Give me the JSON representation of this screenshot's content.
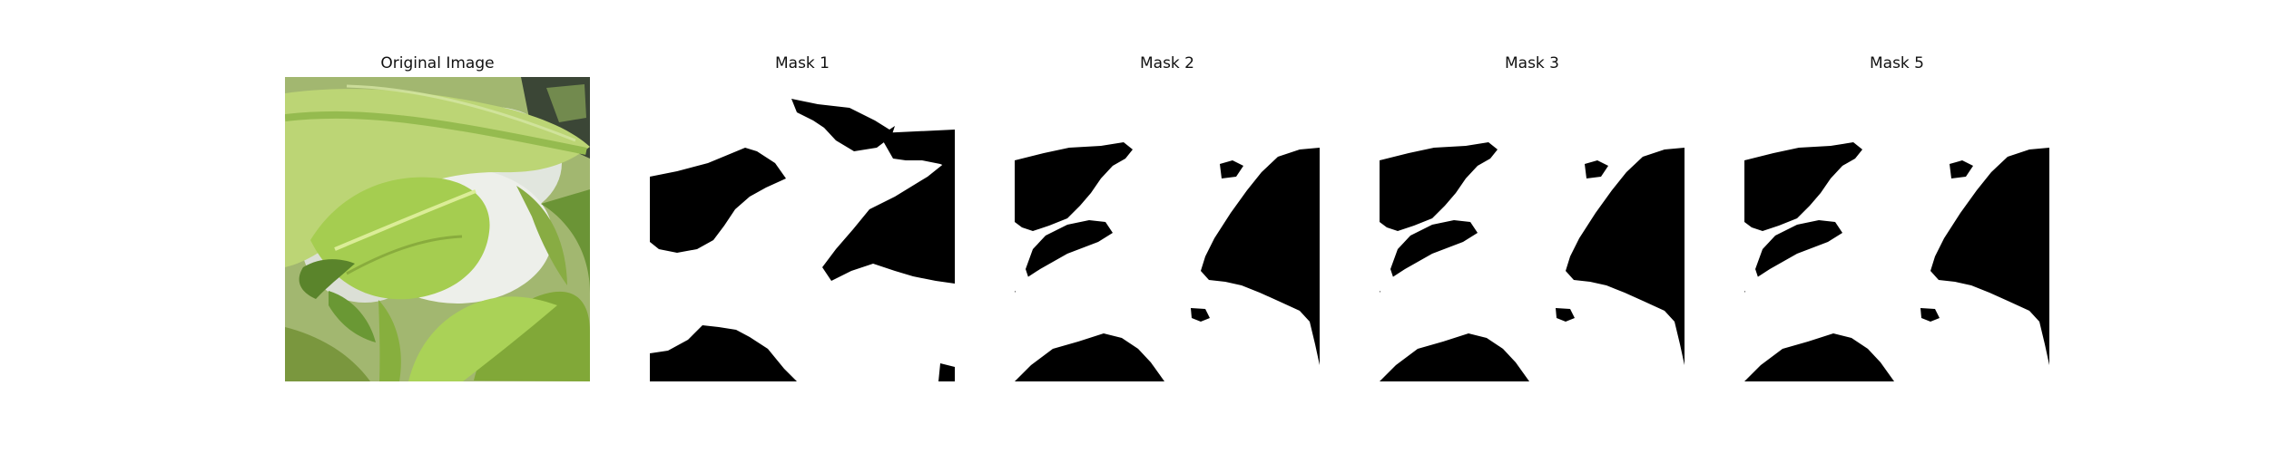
{
  "panels": [
    {
      "title": "Original Image"
    },
    {
      "title": "Mask 1"
    },
    {
      "title": "Mask 2"
    },
    {
      "title": "Mask 3"
    },
    {
      "title": "Mask 5"
    }
  ],
  "colors": {
    "mask_background": "#000000",
    "mask_foreground": "#ffffff",
    "leaf_light": "#a9cf45",
    "leaf_mid": "#86b832",
    "leaf_dark": "#4d7a1a",
    "pot_white": "#e8ebe6"
  }
}
